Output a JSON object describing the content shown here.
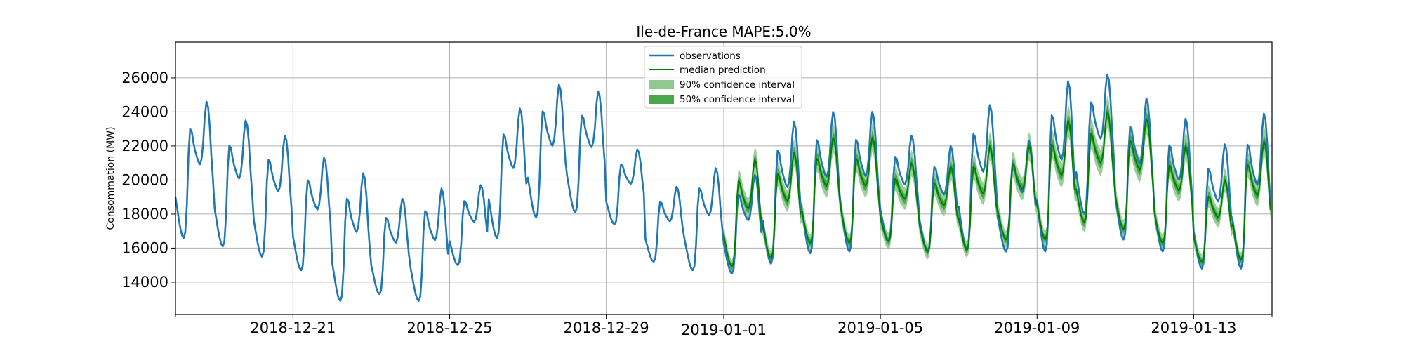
{
  "chart_data": {
    "type": "line",
    "title": "Ile-de-France MAPE:5.0%",
    "xlabel": "",
    "ylabel": "Consommation (MW)",
    "ylim": [
      12100,
      28100
    ],
    "xlim": [
      "2018-12-18",
      "2019-01-15"
    ],
    "grid": true,
    "legend_placement": "top-center",
    "x_ticks": [
      "2018-12-21",
      "2018-12-25",
      "2018-12-29",
      "2019-01-01",
      "2019-01-05",
      "2019-01-09",
      "2019-01-13"
    ],
    "y_ticks": [
      14000,
      16000,
      18000,
      20000,
      22000,
      24000,
      26000
    ],
    "legend": {
      "observations": "observations",
      "median": "median prediction",
      "ci90": "90% confidence interval",
      "ci50": "50% confidence interval"
    },
    "colors": {
      "observations": "#1f77b4",
      "median": "#008000",
      "ci90": "#8fc98f",
      "ci50": "#4ca64c"
    },
    "observation_daily": {
      "note_units": "MW, daily min and max of the half-hourly load",
      "dates": [
        "2018-12-18",
        "2018-12-19",
        "2018-12-20",
        "2018-12-21",
        "2018-12-22",
        "2018-12-23",
        "2018-12-24",
        "2018-12-25",
        "2018-12-26",
        "2018-12-27",
        "2018-12-28",
        "2018-12-29",
        "2018-12-30",
        "2018-12-31",
        "2019-01-01",
        "2019-01-02",
        "2019-01-03",
        "2019-01-04",
        "2019-01-05",
        "2019-01-06",
        "2019-01-07",
        "2019-01-08",
        "2019-01-09",
        "2019-01-10",
        "2019-01-11",
        "2019-01-12",
        "2019-01-13",
        "2019-01-14"
      ],
      "min": [
        16600,
        16100,
        15500,
        14700,
        12900,
        13300,
        12900,
        15000,
        16600,
        17800,
        18100,
        17400,
        15200,
        14700,
        14500,
        15100,
        15700,
        15800,
        16400,
        15800,
        15900,
        15800,
        15800,
        18000,
        16500,
        15800,
        14800,
        14800
      ],
      "max": [
        24600,
        23500,
        22600,
        21300,
        20400,
        18900,
        19500,
        19700,
        24200,
        25600,
        25200,
        21800,
        19600,
        20700,
        20300,
        23400,
        24000,
        24000,
        22600,
        22000,
        24400,
        22300,
        25800,
        26200,
        24800,
        23600,
        22100,
        23900
      ]
    },
    "prediction_daily": {
      "dates": [
        "2019-01-01",
        "2019-01-02",
        "2019-01-03",
        "2019-01-04",
        "2019-01-05",
        "2019-01-06",
        "2019-01-07",
        "2019-01-08",
        "2019-01-09",
        "2019-01-10",
        "2019-01-11",
        "2019-01-12",
        "2019-01-13",
        "2019-01-14"
      ],
      "median_min": [
        14900,
        15400,
        16300,
        16300,
        16400,
        15800,
        15900,
        16500,
        16500,
        17500,
        17100,
        16300,
        15200,
        15300
      ],
      "median_max": [
        21200,
        21600,
        22500,
        22500,
        21000,
        20800,
        22000,
        22000,
        23500,
        24000,
        23600,
        22000,
        20000,
        22300
      ]
    }
  }
}
